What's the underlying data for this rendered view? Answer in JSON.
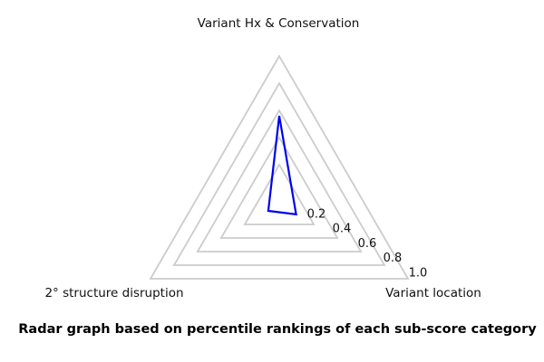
{
  "figure": {
    "caption": "Radar graph based on percentile rankings of each sub-score category",
    "background_color": "#ffffff"
  },
  "chart_data": {
    "type": "radar",
    "categories": [
      "Variant Hx & Conservation",
      "2° structure disruption",
      "Variant location"
    ],
    "values": [
      0.56,
      0.0,
      0.05
    ],
    "axis_ticks": [
      0.2,
      0.4,
      0.6,
      0.8,
      1.0
    ],
    "tick_labels": [
      "0.2",
      "0.4",
      "0.6",
      "0.8",
      "1.0"
    ],
    "radial_range": [
      0,
      1.0
    ],
    "grid": "polygon",
    "legend": "none",
    "title": "Radar graph based on percentile rankings of each sub-score category",
    "line_color": "#0000ee",
    "grid_color": "#cccccc",
    "text_color": "#000000"
  }
}
